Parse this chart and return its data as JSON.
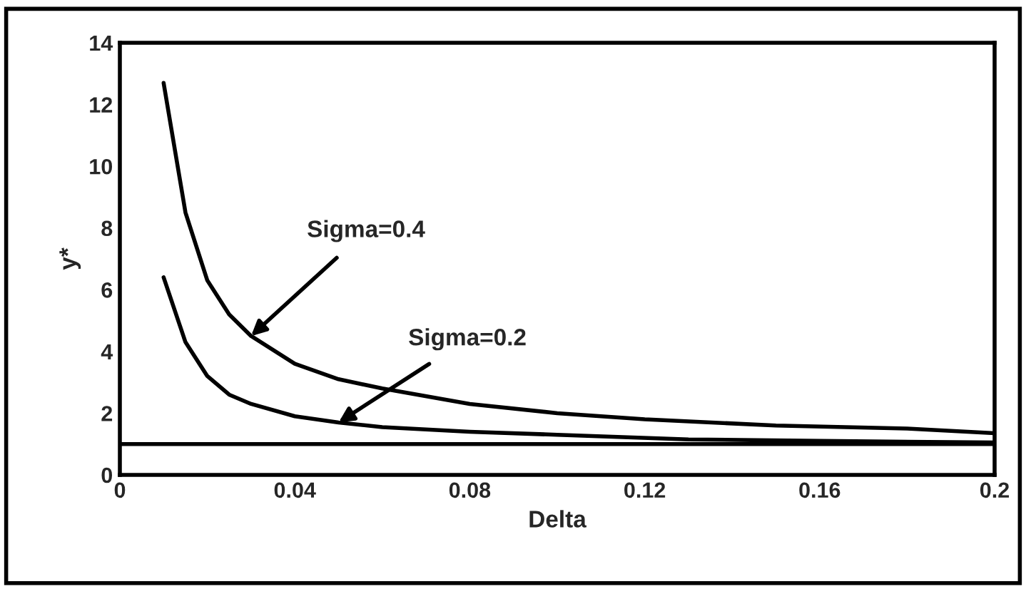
{
  "chart_data": {
    "type": "line",
    "xlabel": "Delta",
    "ylabel": "y*",
    "xlim": [
      0,
      0.2
    ],
    "xticks": [
      {
        "value": 0,
        "label": "0"
      },
      0.04,
      0.08,
      0.12,
      0.16,
      0.2
    ],
    "ylim": [
      0,
      14
    ],
    "yticks": [
      0,
      2,
      4,
      6,
      8,
      10,
      12,
      14
    ],
    "grid": false,
    "marker": "none",
    "line_style": "solid",
    "series": [
      {
        "color": "#000000",
        "x": [
          0.01,
          0.015,
          0.02,
          0.025,
          0.03,
          0.04,
          0.05,
          0.06,
          0.08,
          0.1,
          0.12,
          0.15,
          0.18,
          0.2
        ],
        "values": [
          12.7,
          8.5,
          6.3,
          5.2,
          4.5,
          3.6,
          3.1,
          2.8,
          2.3,
          2.0,
          1.8,
          1.6,
          1.5,
          1.35
        ]
      },
      {
        "color": "#000000",
        "x": [
          0.01,
          0.015,
          0.02,
          0.025,
          0.03,
          0.04,
          0.05,
          0.06,
          0.08,
          0.1,
          0.13,
          0.16,
          0.2
        ],
        "values": [
          6.4,
          4.3,
          3.2,
          2.6,
          2.3,
          1.9,
          1.7,
          1.55,
          1.4,
          1.3,
          1.15,
          1.1,
          1.05
        ]
      }
    ],
    "ref_lines": [
      {
        "axis": "y",
        "value": 1,
        "color": "#000000",
        "line_style": "solid"
      }
    ],
    "annotations": [
      {
        "text": "Sigma=0.4",
        "x": 0.03,
        "y": 4.5
      },
      {
        "text": "Sigma=0.2",
        "x": 0.05,
        "y": 1.7
      }
    ]
  }
}
